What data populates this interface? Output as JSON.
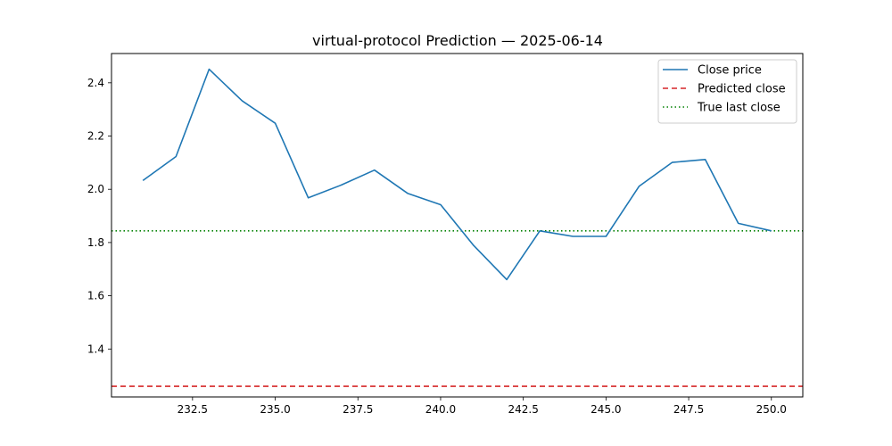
{
  "chart_data": {
    "type": "line",
    "title": "virtual-protocol Prediction — 2025-06-14",
    "xlabel": "",
    "ylabel": "",
    "xlim": [
      230.05,
      250.95
    ],
    "ylim": [
      1.22,
      2.51
    ],
    "x_ticks": [
      232.5,
      235.0,
      237.5,
      240.0,
      242.5,
      245.0,
      247.5,
      250.0
    ],
    "x_tick_labels": [
      "232.5",
      "235.0",
      "237.5",
      "240.0",
      "242.5",
      "245.0",
      "247.5",
      "250.0"
    ],
    "y_ticks": [
      1.4,
      1.6,
      1.8,
      2.0,
      2.2,
      2.4
    ],
    "y_tick_labels": [
      "1.4",
      "1.6",
      "1.8",
      "2.0",
      "2.2",
      "2.4"
    ],
    "grid": false,
    "legend_position": "top-right",
    "series": [
      {
        "name": "Close price",
        "color": "#1f77b4",
        "style": "solid",
        "x": [
          231,
          232,
          233,
          234,
          235,
          236,
          237,
          238,
          239,
          240,
          241,
          242,
          243,
          244,
          245,
          246,
          247,
          248,
          249,
          250
        ],
        "values": [
          2.033,
          2.123,
          2.451,
          2.332,
          2.248,
          1.968,
          2.016,
          2.072,
          1.985,
          1.942,
          1.789,
          1.661,
          1.844,
          1.823,
          1.823,
          2.011,
          2.101,
          2.112,
          1.872,
          1.844
        ]
      }
    ],
    "hlines": [
      {
        "name": "Predicted close",
        "value": 1.26,
        "color": "#d62728",
        "style": "dashed"
      },
      {
        "name": "True last close",
        "value": 1.844,
        "color": "#008000",
        "style": "dotted"
      }
    ]
  }
}
